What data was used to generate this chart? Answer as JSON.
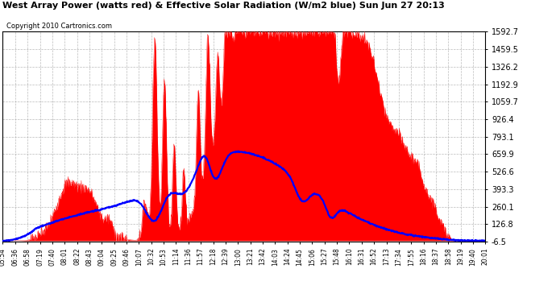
{
  "title": "West Array Power (watts red) & Effective Solar Radiation (W/m2 blue) Sun Jun 27 20:13",
  "copyright": "Copyright 2010 Cartronics.com",
  "yticks": [
    -6.5,
    126.8,
    260.1,
    393.3,
    526.6,
    659.9,
    793.1,
    926.4,
    1059.7,
    1192.9,
    1326.2,
    1459.5,
    1592.7
  ],
  "ymin": -6.5,
  "ymax": 1592.7,
  "xtick_labels": [
    "05:54",
    "06:36",
    "06:58",
    "07:19",
    "07:40",
    "08:01",
    "08:22",
    "08:43",
    "09:04",
    "09:25",
    "09:46",
    "10:07",
    "10:32",
    "10:53",
    "11:14",
    "11:36",
    "11:57",
    "12:18",
    "12:39",
    "13:00",
    "13:21",
    "13:42",
    "14:03",
    "14:24",
    "14:45",
    "15:06",
    "15:27",
    "15:48",
    "16:10",
    "16:31",
    "16:52",
    "17:13",
    "17:34",
    "17:55",
    "18:16",
    "18:37",
    "18:58",
    "19:19",
    "19:40",
    "20:01"
  ],
  "bg_color": "#ffffff",
  "plot_bg_color": "#ffffff",
  "title_color": "#000000",
  "tick_color": "#000000",
  "grid_color": "#aaaaaa",
  "red_color": "#ff0000",
  "blue_color": "#0000ff",
  "title_fontsize": 8.0,
  "tick_fontsize": 7.0,
  "xtick_fontsize": 5.5,
  "copyright_fontsize": 6.0
}
